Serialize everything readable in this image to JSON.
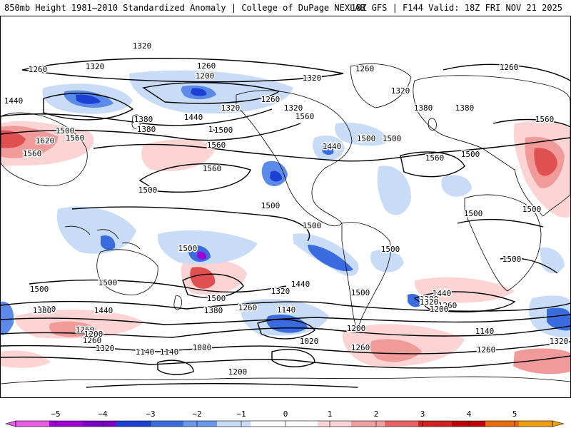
{
  "header": {
    "title": "850mb Height 1981–2010 Standardized Anomaly | College of DuPage NEXLAB",
    "run_info": "18Z GFS | F144 Valid: 18Z FRI NOV 21 2025"
  },
  "map": {
    "variable": "850mb geopotential height (dam)",
    "shading": "standardized anomaly",
    "anomaly_colors": {
      "-5": "#e85ce8",
      "-4": "#7a00c8",
      "-3": "#1c3fd4",
      "-2": "#5c8ae8",
      "-1": "#c8dcf8",
      "1": "#fcd4d4",
      "2": "#f09a9a",
      "3": "#e05050",
      "4": "#c00000",
      "5": "#f0a000"
    },
    "contour_labels": [
      "1320",
      "1320",
      "1260",
      "1260",
      "1260",
      "1260",
      "1200",
      "1320",
      "1320",
      "1320",
      "1320",
      "1260",
      "1440",
      "1440",
      "1440",
      "1440",
      "1500",
      "1500",
      "1500",
      "1500",
      "1500",
      "1500",
      "1500",
      "1500",
      "1620",
      "1560",
      "1560",
      "1560",
      "1560",
      "1560",
      "1560",
      "1560",
      "1380",
      "1380",
      "1380",
      "1380",
      "1380",
      "1500",
      "1500",
      "1500",
      "1500",
      "1500",
      "1500",
      "1500",
      "1500",
      "1500",
      "1440",
      "1440",
      "1440",
      "1380",
      "1380",
      "1380",
      "1320",
      "1320",
      "1320",
      "1320",
      "1260",
      "1260",
      "1260",
      "1260",
      "1260",
      "1260",
      "1200",
      "1200",
      "1200",
      "1200",
      "1140",
      "1140",
      "1140",
      "1140",
      "1080",
      "1020"
    ]
  },
  "colorbar": {
    "ticks": [
      "−5",
      "−4",
      "−3",
      "−2",
      "−1",
      "0",
      "1",
      "2",
      "3",
      "4",
      "5"
    ],
    "colors": [
      "#e85ce8",
      "#a000d8",
      "#7a00c8",
      "#1c3fd4",
      "#3a6ce0",
      "#6a98ec",
      "#c8dcf8",
      "#ffffff",
      "#ffffff",
      "#fcd4d4",
      "#f0a0a0",
      "#e86464",
      "#d02020",
      "#c00000",
      "#e86a00",
      "#f0a000"
    ]
  }
}
